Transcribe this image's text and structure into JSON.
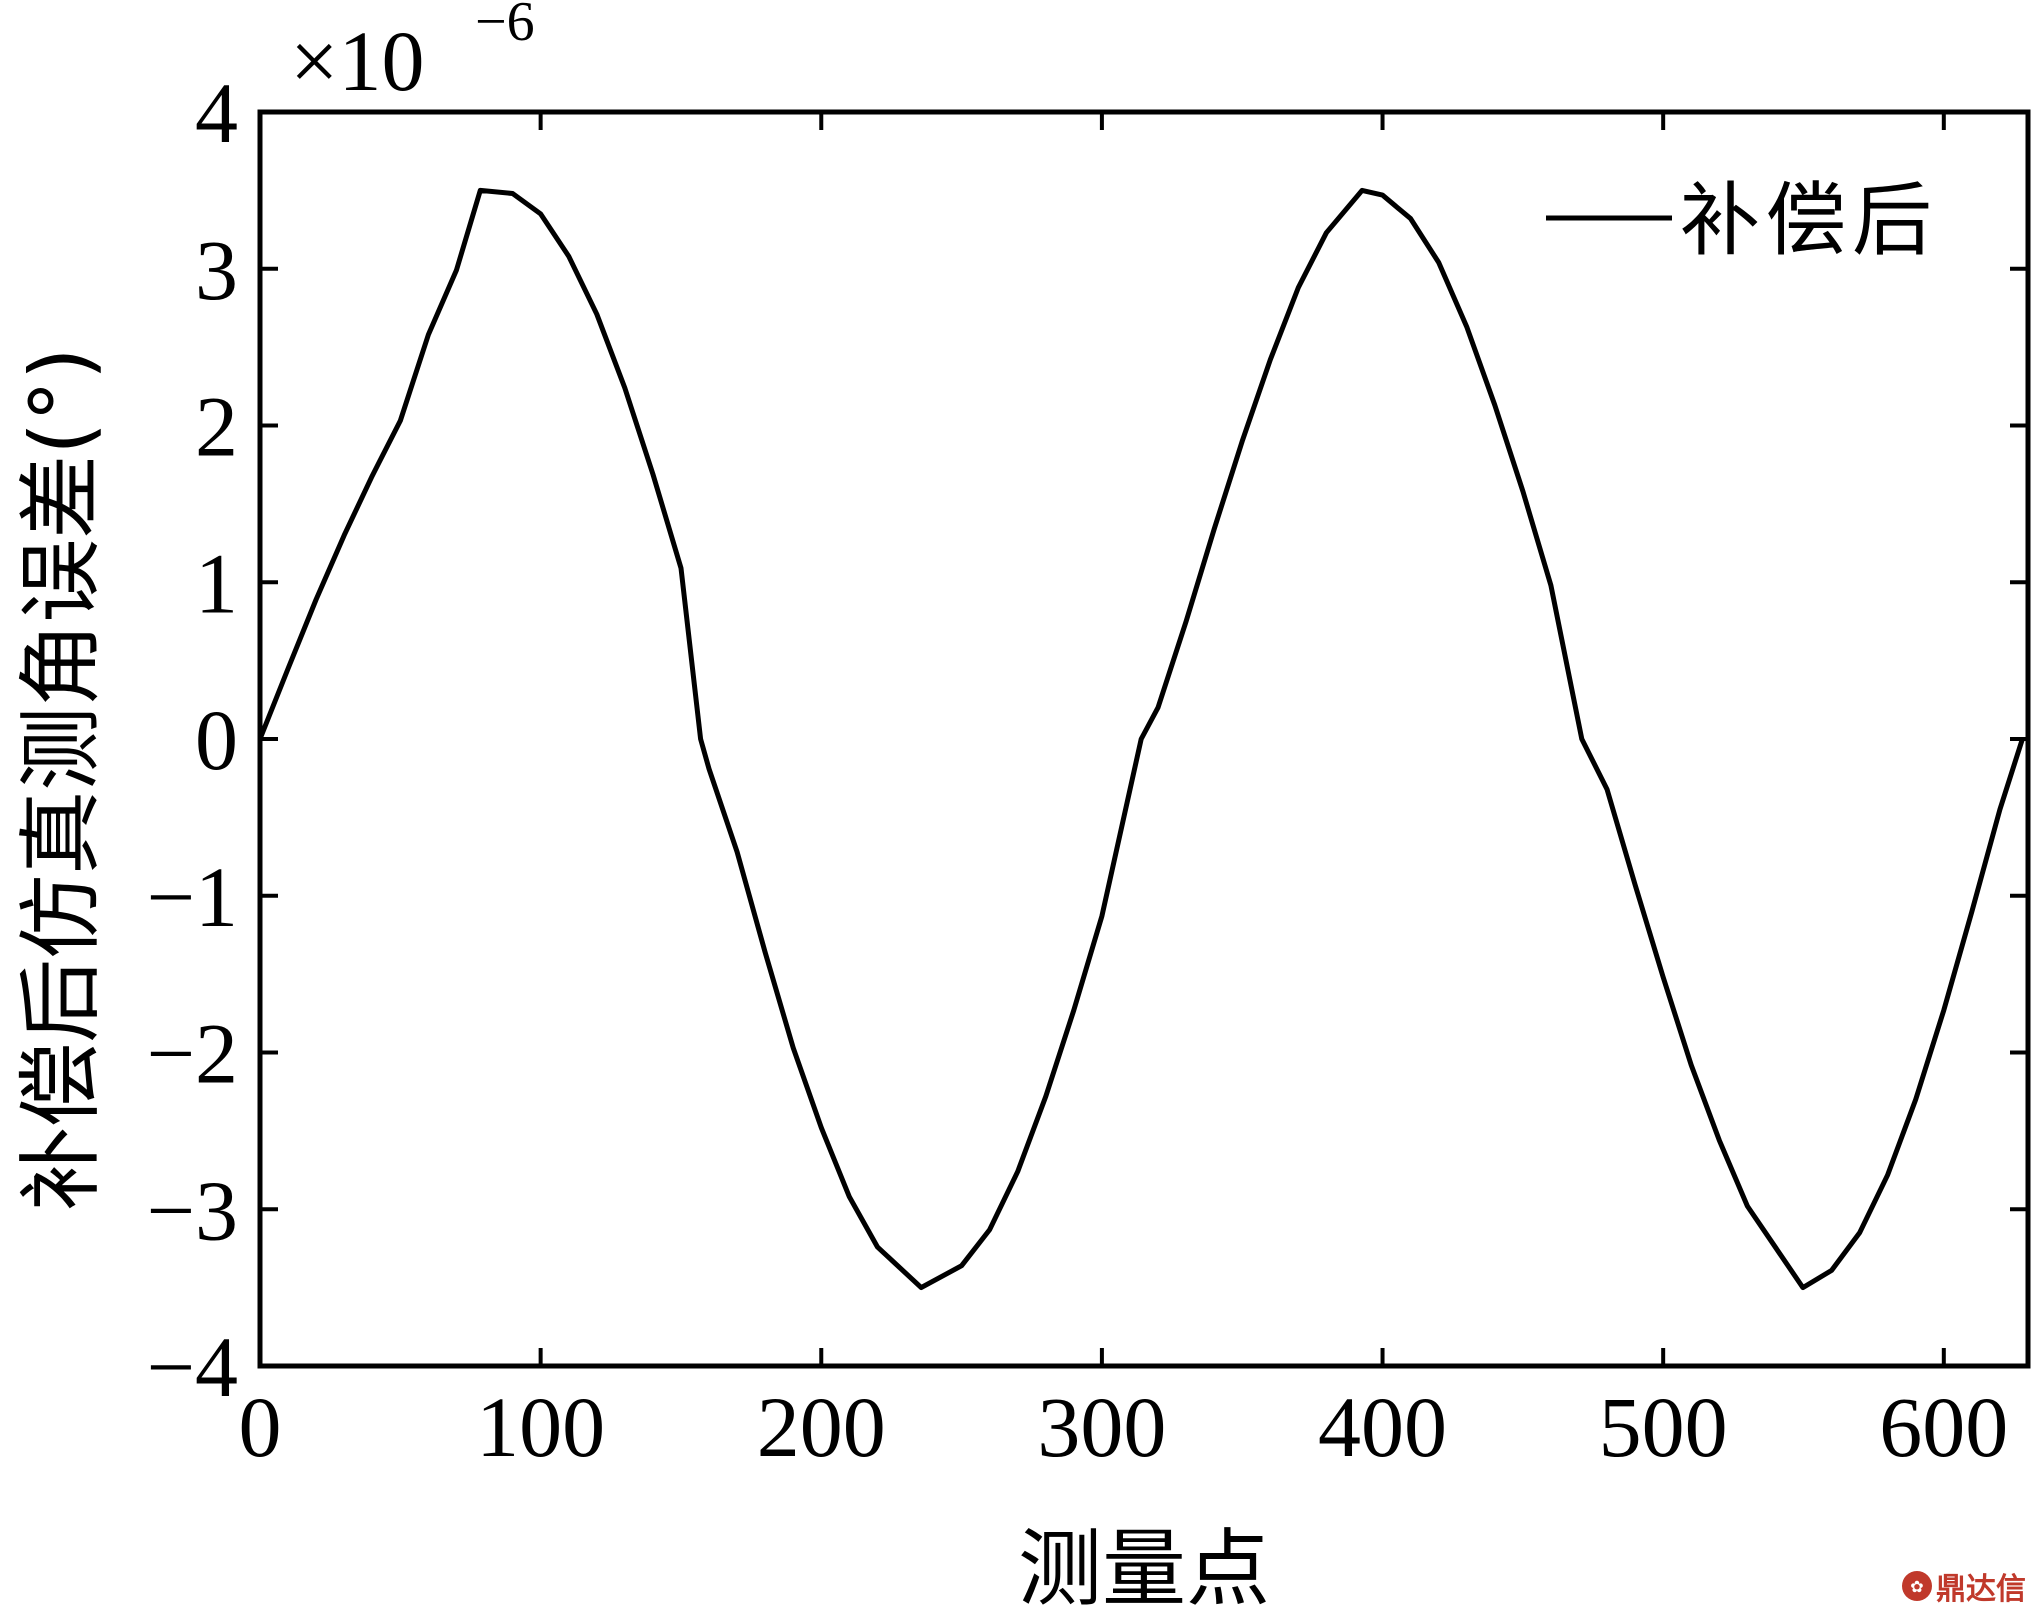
{
  "chart_data": {
    "type": "line",
    "xlabel": "测量点",
    "ylabel": "补偿后仿真测角误差(°)",
    "y_exponent": {
      "base": "×10",
      "power": "−6"
    },
    "xlim": [
      0,
      630
    ],
    "ylim": [
      -4,
      4
    ],
    "x_ticks": [
      0,
      100,
      200,
      300,
      400,
      500,
      600
    ],
    "x_tick_labels": [
      "0",
      "100",
      "200",
      "300",
      "400",
      "500",
      "600"
    ],
    "y_ticks": [
      4,
      3,
      2,
      1,
      0,
      -1,
      -2,
      -3,
      -4
    ],
    "y_tick_labels": [
      "4",
      "3",
      "2",
      "1",
      "0",
      "−1",
      "−2",
      "−3",
      "−4"
    ],
    "grid": false,
    "legend_position": "top-right",
    "series": [
      {
        "name": "补偿后",
        "color": "#000000",
        "x": [
          0,
          10,
          20,
          30,
          40,
          50,
          60,
          70,
          78.5,
          90,
          100,
          110,
          120,
          130,
          140,
          150,
          157,
          160,
          170,
          180,
          190,
          200,
          210,
          220,
          235.6,
          250,
          260,
          270,
          280,
          290,
          300,
          314,
          320,
          330,
          340,
          350,
          360,
          370,
          380,
          392.7,
          400,
          410,
          420,
          430,
          440,
          450,
          460,
          471,
          480,
          490,
          500,
          510,
          520,
          530,
          549.8,
          560,
          570,
          580,
          590,
          600,
          610,
          620,
          628
        ],
        "y": [
          0,
          0.45,
          0.89,
          1.3,
          1.68,
          2.03,
          2.58,
          2.99,
          3.5,
          3.48,
          3.35,
          3.08,
          2.71,
          2.24,
          1.69,
          1.09,
          0.0,
          -0.19,
          -0.72,
          -1.36,
          -1.97,
          -2.48,
          -2.92,
          -3.24,
          -3.5,
          -3.36,
          -3.13,
          -2.76,
          -2.28,
          -1.73,
          -1.13,
          0,
          0.2,
          0.75,
          1.34,
          1.9,
          2.42,
          2.88,
          3.23,
          3.5,
          3.47,
          3.32,
          3.04,
          2.63,
          2.13,
          1.58,
          0.98,
          0,
          -0.32,
          -0.93,
          -1.52,
          -2.08,
          -2.56,
          -2.98,
          -3.5,
          -3.39,
          -3.15,
          -2.78,
          -2.3,
          -1.73,
          -1.1,
          -0.45,
          0
        ]
      }
    ]
  },
  "watermark": {
    "text": "鼎达信"
  }
}
